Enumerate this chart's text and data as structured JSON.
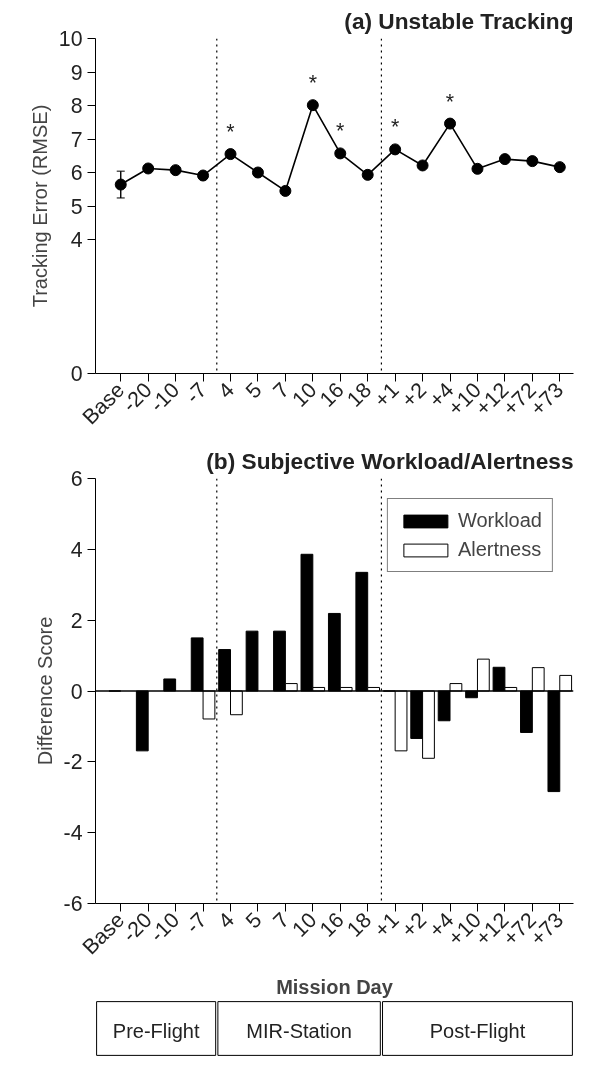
{
  "chart_data": [
    {
      "type": "line",
      "title": "(a) Unstable Tracking",
      "ylabel": "Tracking Error (RMSE)",
      "categories": [
        "Base",
        "-20",
        "-10",
        "-7",
        "4",
        "5",
        "7",
        "10",
        "16",
        "18",
        "+1",
        "+2",
        "+4",
        "+10",
        "+12",
        "+72",
        "+73"
      ],
      "series": [
        {
          "color": "#000000",
          "values": [
            5.64,
            6.12,
            6.07,
            5.91,
            6.55,
            6.0,
            5.45,
            8.01,
            6.57,
            5.93,
            6.69,
            6.21,
            7.46,
            6.11,
            6.4,
            6.34,
            6.16
          ],
          "errors": [
            0.4,
            null,
            null,
            null,
            null,
            null,
            null,
            null,
            null,
            null,
            null,
            null,
            null,
            null,
            null,
            null,
            null
          ]
        }
      ],
      "marker": "circle",
      "line_style": "solid",
      "grid": false,
      "ylim": [
        0,
        10
      ],
      "yticks": [
        0,
        4,
        5,
        6,
        7,
        8,
        9,
        10
      ],
      "annotations": [
        {
          "text": "*",
          "x": "4",
          "y": 6.55
        },
        {
          "text": "*",
          "x": "10",
          "y": 8.01
        },
        {
          "text": "*",
          "x": "16",
          "y": 6.57
        },
        {
          "text": "*",
          "x": "+1",
          "y": 6.69
        },
        {
          "text": "*",
          "x": "+4",
          "y": 7.46
        }
      ]
    },
    {
      "type": "bar",
      "title": "(b) Subjective Workload/Alertness",
      "xlabel": "Mission Day",
      "ylabel": "Difference Score",
      "categories": [
        "Base",
        "-20",
        "-10",
        "-7",
        "4",
        "5",
        "7",
        "10",
        "16",
        "18",
        "+1",
        "+2",
        "+4",
        "+10",
        "+12",
        "+72",
        "+73"
      ],
      "series": [
        {
          "name": "Workload",
          "color": "#000000",
          "values": [
            0,
            -1.69,
            0.34,
            1.5,
            1.17,
            1.69,
            1.69,
            3.86,
            2.19,
            3.35,
            0,
            -1.34,
            -0.84,
            -0.19,
            0.67,
            -1.17,
            -2.84
          ]
        },
        {
          "name": "Alertness",
          "color": "#ffffff",
          "values": [
            null,
            null,
            null,
            -0.79,
            -0.67,
            null,
            0.21,
            0.1,
            0.1,
            0.1,
            -1.69,
            -1.9,
            0.21,
            0.9,
            0.1,
            0.66,
            0.44
          ]
        }
      ],
      "grid": false,
      "legend": "top right",
      "ylim": [
        -6,
        6
      ],
      "yticks": [
        -6,
        -4,
        -2,
        0,
        2,
        4,
        6
      ],
      "annotations": [
        "Pre-Flight",
        "MIR-Station",
        "Post-Flight"
      ]
    }
  ]
}
